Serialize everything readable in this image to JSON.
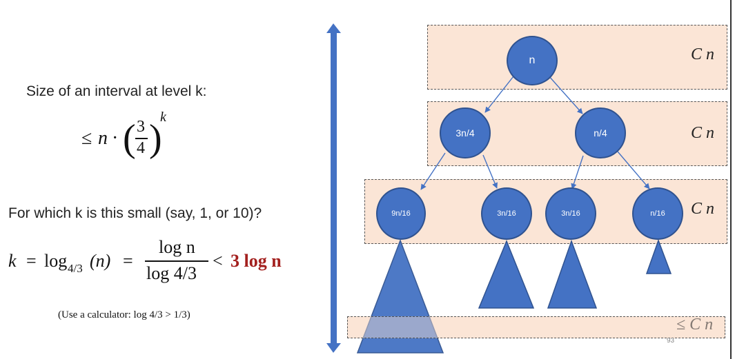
{
  "left": {
    "size_label": "Size of an interval at level k:",
    "bound": {
      "leq": "≤",
      "n": "n",
      "dot": "·",
      "num": "3",
      "den": "4",
      "exp": "k"
    },
    "question": "For which k is this small (say, 1, or 10)?",
    "equation": {
      "k": "k",
      "eq": "=",
      "log_base": "log",
      "base": "4/3",
      "arg": "(n)",
      "frac_num": "log n",
      "frac_den": "log 4/3",
      "lt": "<",
      "result": "3 log n"
    },
    "calc_note": "(Use a calculator: log 4/3 > 1/3)"
  },
  "tree": {
    "nodes": [
      {
        "id": "root",
        "label": "n"
      },
      {
        "id": "l1a",
        "label": "3n/4"
      },
      {
        "id": "l1b",
        "label": "n/4"
      },
      {
        "id": "l2a",
        "label": "9n/16"
      },
      {
        "id": "l2b",
        "label": "3n/16"
      },
      {
        "id": "l2c",
        "label": "3n/16"
      },
      {
        "id": "l2d",
        "label": "n/16"
      }
    ],
    "level_costs": [
      "C n",
      "C n",
      "C n",
      "≤ C n"
    ]
  },
  "page_number": "93",
  "colors": {
    "node_fill": "#4472c4",
    "level_fill": "#fbe5d6",
    "arrow": "#4472c4",
    "result_red": "#a3201e"
  }
}
